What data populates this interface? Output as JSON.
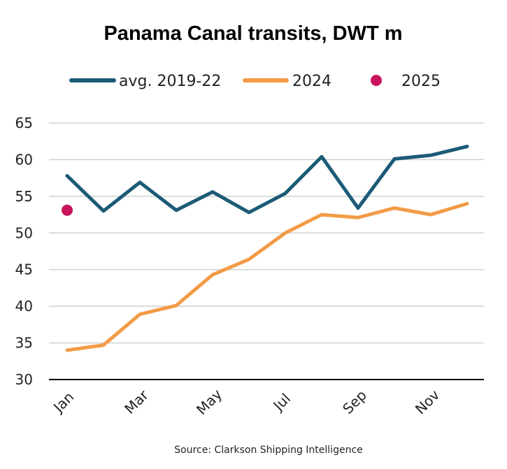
{
  "colors": {
    "avg": "#1b5b77",
    "y2024": "#f29b46",
    "y2025": "#c8145a",
    "grid": "#d0d0d0",
    "axis": "#000000"
  },
  "chart_data": {
    "type": "line",
    "title": "Panama Canal transits, DWT m",
    "xlabel": "",
    "ylabel": "",
    "ylim": [
      30,
      65
    ],
    "yticks": [
      30,
      35,
      40,
      45,
      50,
      55,
      60,
      65
    ],
    "grid": true,
    "legend_placement": "top",
    "categories": [
      "Jan",
      "Feb",
      "Mar",
      "Apr",
      "May",
      "Jun",
      "Jul",
      "Aug",
      "Sep",
      "Oct",
      "Nov",
      "Dec"
    ],
    "x_tick_labels": [
      {
        "index": 0,
        "label": "Jan"
      },
      {
        "index": 2,
        "label": "Mar"
      },
      {
        "index": 4,
        "label": "May"
      },
      {
        "index": 6,
        "label": "Jul"
      },
      {
        "index": 8,
        "label": "Sep"
      },
      {
        "index": 10,
        "label": "Nov"
      }
    ],
    "series": [
      {
        "name": "avg. 2019-22",
        "style": "line",
        "color": "#1b5b77",
        "values": [
          57.8,
          53.0,
          56.9,
          53.1,
          55.6,
          52.8,
          55.4,
          60.4,
          53.4,
          60.1,
          60.6,
          61.8
        ]
      },
      {
        "name": "2024",
        "style": "line",
        "color": "#f29b46",
        "values": [
          34.0,
          34.7,
          38.9,
          40.1,
          44.3,
          46.4,
          50.0,
          52.5,
          52.1,
          53.4,
          52.5,
          54.0
        ]
      },
      {
        "name": "2025",
        "style": "point",
        "color": "#c8145a",
        "values": [
          53.1,
          null,
          null,
          null,
          null,
          null,
          null,
          null,
          null,
          null,
          null,
          null
        ]
      }
    ],
    "source": "Source: Clarkson Shipping Intelligence"
  }
}
